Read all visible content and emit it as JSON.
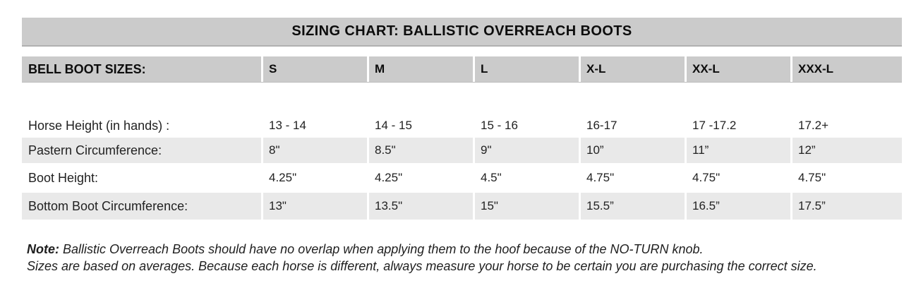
{
  "title": "SIZING CHART: BALLISTIC OVERREACH BOOTS",
  "table": {
    "header": [
      "BELL BOOT SIZES:",
      "S",
      "M",
      "L",
      "X-L",
      "XX-L",
      "XXX-L"
    ],
    "rows": [
      [
        "Horse Height (in hands) :",
        "13 - 14",
        "14 - 15",
        "15 - 16",
        "16-17",
        "17 -17.2",
        "17.2+"
      ],
      [
        "Pastern Circumference:",
        "8\"",
        "8.5\"",
        "9\"",
        "10”",
        "11”",
        "12”"
      ],
      [
        "Boot Height:",
        "4.25\"",
        "4.25\"",
        "4.5\"",
        "4.75\"",
        "4.75\"",
        "4.75\""
      ],
      [
        "Bottom Boot Circumference:",
        "13\"",
        "13.5\"",
        "15\"",
        "15.5”",
        "16.5”",
        "17.5”"
      ]
    ]
  },
  "note": {
    "label": "Note:",
    "line1": "Ballistic Overreach Boots should have no overlap when applying them to the hoof because of the NO-TURN knob.",
    "line2": "Sizes are based on averages. Because each horse is different, always measure your horse to be certain you are purchasing the correct size."
  },
  "colors": {
    "header_bg": "#cbcbcb",
    "shaded_row_bg": "#e9e9e9",
    "separator": "#ffffff",
    "title_bottom_edge": "#b0b0b0",
    "text": "#1a1a1a"
  }
}
